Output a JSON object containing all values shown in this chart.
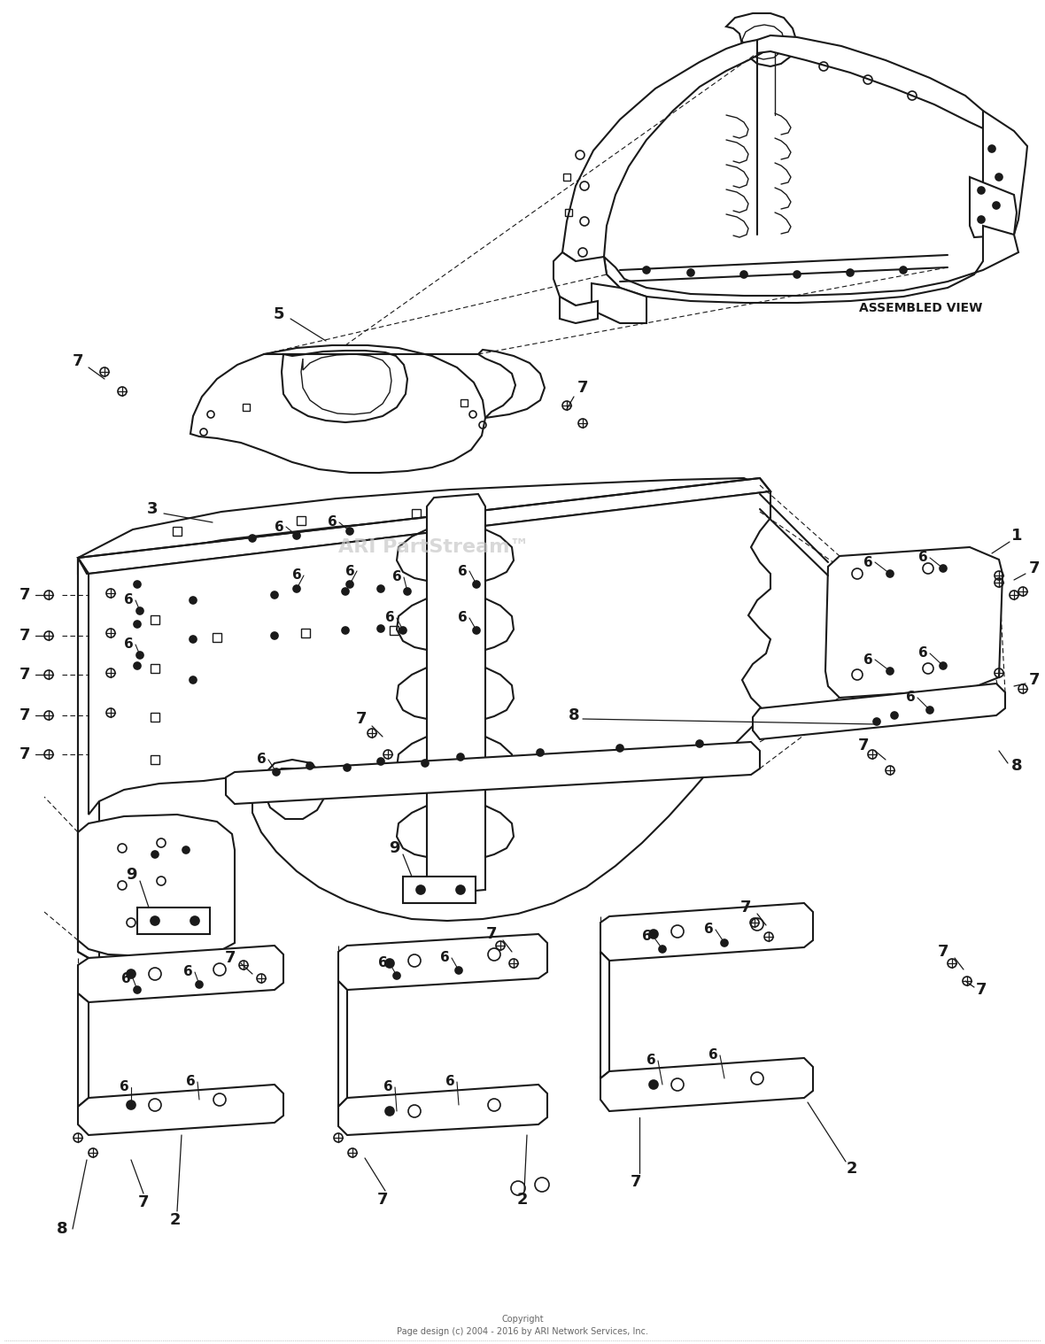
{
  "background_color": "#ffffff",
  "line_color": "#1a1a1a",
  "watermark": "ARI PartStream™",
  "watermark_color": "#c8c8c8",
  "copyright_line1": "Copyright",
  "copyright_line2": "Page design (c) 2004 - 2016 by ARI Network Services, Inc.",
  "assembled_view_label": "ASSEMBLED VIEW",
  "fig_width": 11.8,
  "fig_height": 15.18,
  "dpi": 100
}
